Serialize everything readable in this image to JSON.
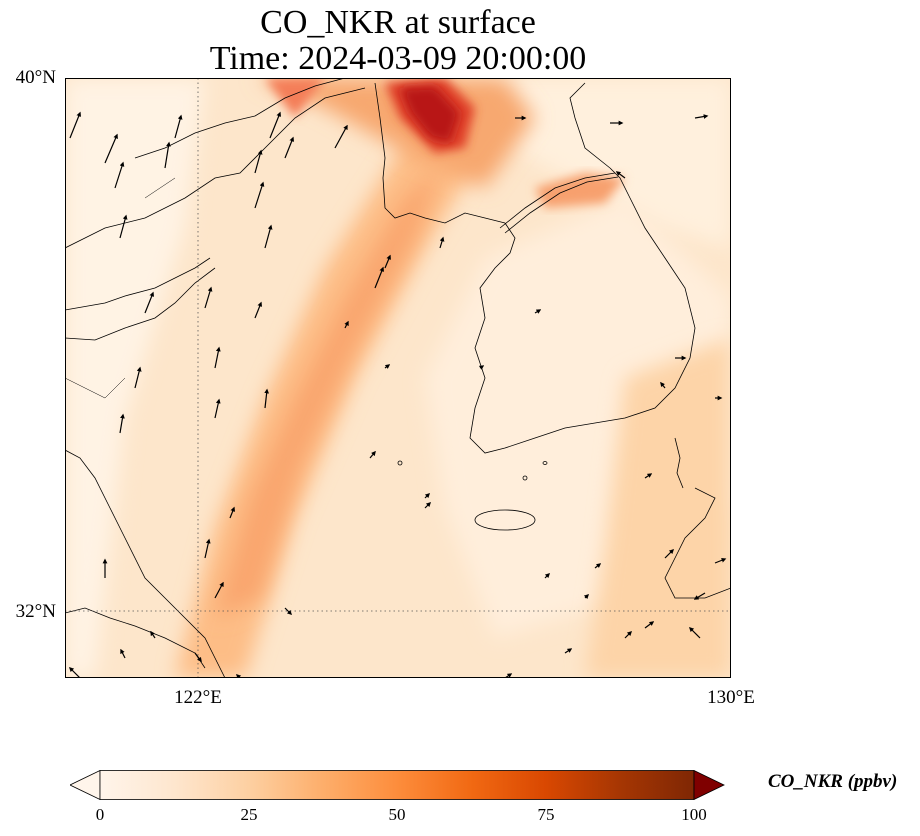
{
  "title_line1": "CO_NKR at surface",
  "title_line2": "Time: 2024-03-09 20:00:00",
  "y_ticks": [
    "40°N",
    "32°N"
  ],
  "x_ticks": [
    "122°E",
    "130°E"
  ],
  "colorbar": {
    "label": "CO_NKR (ppbv)",
    "ticks": [
      "0",
      "25",
      "50",
      "75",
      "100"
    ],
    "range": [
      0,
      100
    ],
    "extend": "both",
    "colormap": [
      "#fff5eb",
      "#fee6ce",
      "#fdd0a2",
      "#fdae6b",
      "#fd8d3c",
      "#f16913",
      "#d94801",
      "#a63603",
      "#7f2704"
    ]
  },
  "chart_data": {
    "type": "heatmap",
    "title": "CO_NKR at surface\nTime: 2024-03-09 20:00:00",
    "variable": "CO_NKR",
    "units": "ppbv",
    "extent": {
      "lon": [
        120,
        130
      ],
      "lat": [
        31,
        40
      ]
    },
    "gridlines": {
      "lon": [
        122
      ],
      "lat": [
        32
      ]
    },
    "plumes": [
      {
        "description": "plume",
        "lat": [
          32.5,
          39
        ],
        "lon": [
          121.5,
          124.5
        ],
        "value": 40
      },
      {
        "description": "hotspot",
        "lat": [
          39.2,
          39.8
        ],
        "lon": [
          124.8,
          126.2
        ],
        "value": 95
      },
      {
        "description": "band",
        "lat": [
          38.4,
          38.9
        ],
        "lon": [
          126.8,
          128.0
        ],
        "value": 45
      }
    ],
    "wind_vectors": "overlay"
  }
}
